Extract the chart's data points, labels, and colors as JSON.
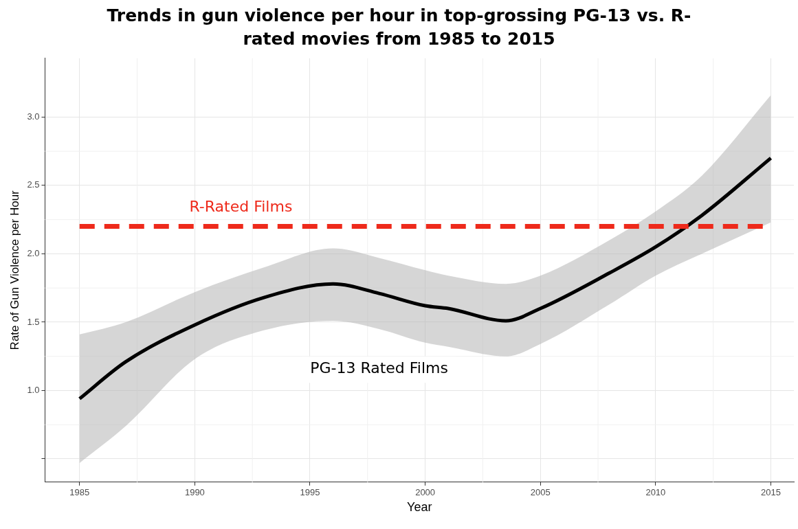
{
  "chart_data": {
    "type": "line",
    "title": "Trends in gun violence per hour in top-grossing PG-13 vs. R-rated movies from 1985 to 2015",
    "xlabel": "Year",
    "ylabel": "Rate of Gun Violence per Hour",
    "x": [
      1985,
      1987,
      1990,
      1993,
      1996,
      1998,
      2000,
      2001,
      2003.5,
      2005,
      2008,
      2010,
      2012,
      2015
    ],
    "series": [
      {
        "name": "PG-13 Rated Films",
        "color": "#000000",
        "values": [
          0.94,
          1.21,
          1.48,
          1.68,
          1.78,
          1.71,
          1.62,
          1.6,
          1.51,
          1.6,
          1.86,
          2.05,
          2.28,
          2.7
        ],
        "lower": [
          0.47,
          0.74,
          1.23,
          1.44,
          1.51,
          1.45,
          1.35,
          1.32,
          1.25,
          1.34,
          1.63,
          1.84,
          2.0,
          2.23
        ],
        "upper": [
          1.41,
          1.5,
          1.72,
          1.9,
          2.04,
          1.97,
          1.88,
          1.84,
          1.78,
          1.84,
          2.1,
          2.31,
          2.57,
          3.16
        ]
      }
    ],
    "ref_lines": [
      {
        "axis": "y",
        "value": 2.2,
        "label": "R-Rated Films",
        "color": "#ee2a1b",
        "line_style": "dashed"
      }
    ],
    "xlim": [
      1983.5,
      2016
    ],
    "xticks": [
      1985,
      1990,
      1995,
      2000,
      2005,
      2010,
      2015
    ],
    "ylim": [
      0.33,
      3.43
    ],
    "yticks": [
      {
        "value": 0.5,
        "label": null
      },
      {
        "value": 1.0,
        "label": "1.0"
      },
      {
        "value": 1.5,
        "label": "1.5"
      },
      {
        "value": 2.0,
        "label": "2.0"
      },
      {
        "value": 2.5,
        "label": "2.5"
      },
      {
        "value": 3.0,
        "label": "3.0"
      }
    ],
    "grid": true,
    "legend": false,
    "marker": "none",
    "line_style": "solid"
  }
}
